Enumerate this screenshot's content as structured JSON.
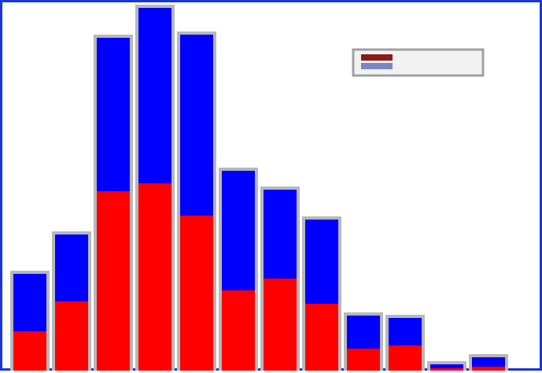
{
  "chart_data": {
    "type": "bar",
    "stacked": true,
    "categories": [
      "",
      "",
      "",
      "",
      "",
      "",
      "",
      "",
      "",
      "",
      "",
      ""
    ],
    "series": [
      {
        "color": "#ff0000",
        "values": [
          50,
          88,
          228,
          238,
          197,
          102,
          117,
          85,
          28,
          32,
          3,
          5
        ]
      },
      {
        "color": "#0000ff",
        "values": [
          73,
          85,
          195,
          223,
          230,
          152,
          113,
          107,
          42,
          35,
          5,
          12
        ]
      }
    ],
    "ylim": [
      0,
      465
    ],
    "legend": {
      "position": "top-right",
      "entries": [
        "",
        ""
      ]
    },
    "grid": false,
    "colors": {
      "frame": "#1a35d8",
      "bar_outline": "#b8b8b8",
      "background": "#ffffff"
    }
  }
}
